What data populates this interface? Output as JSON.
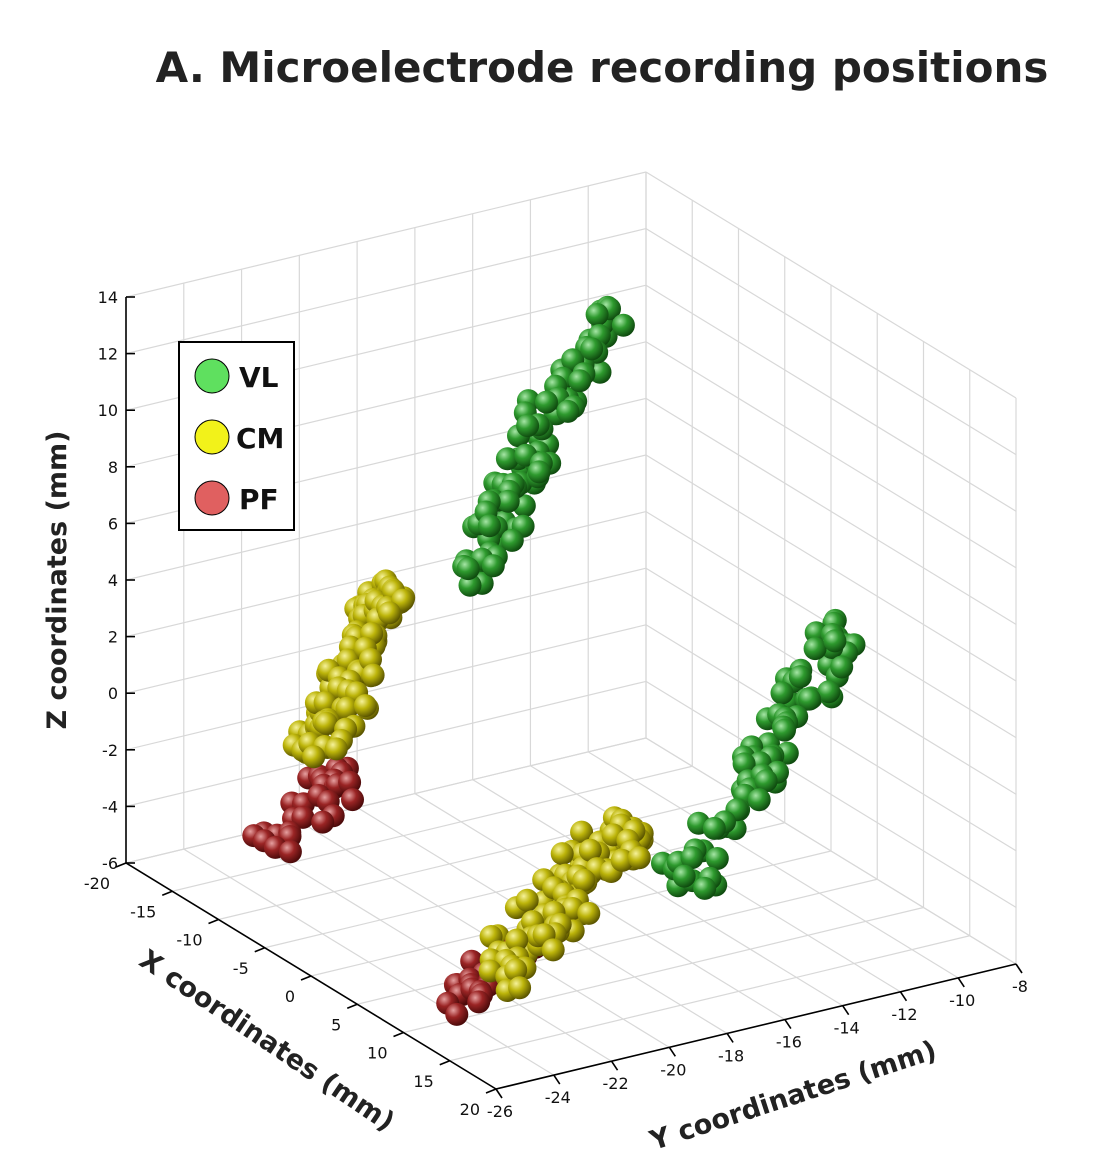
{
  "chart_data": {
    "type": "scatter",
    "title": "A. Microelectrode recording positions",
    "xlabel": "X coordinates (mm)",
    "ylabel": "Y coordinates (mm)",
    "zlabel": "Z coordinates (mm)",
    "xlim": [
      -20,
      20
    ],
    "ylim": [
      -26,
      -8
    ],
    "zlim": [
      -6,
      14
    ],
    "x_ticks": [
      "-20",
      "-15",
      "-10",
      "-5",
      "0",
      "5",
      "10",
      "15",
      "20"
    ],
    "y_ticks": [
      "-26",
      "-24",
      "-22",
      "-20",
      "-18",
      "-16",
      "-14",
      "-12",
      "-10",
      "-8"
    ],
    "z_ticks": [
      "-6",
      "-4",
      "-2",
      "0",
      "2",
      "4",
      "6",
      "8",
      "10",
      "12",
      "14"
    ],
    "grid": true,
    "legend_position": "top-left",
    "series": [
      {
        "name": "VL",
        "color": "#2f9a2f",
        "legend_color": "#5fe05f"
      },
      {
        "name": "CM",
        "color": "#c8c010",
        "legend_color": "#f2f21a"
      },
      {
        "name": "PF",
        "color": "#a02828",
        "legend_color": "#e06060"
      }
    ],
    "clusters": [
      {
        "series": "VL",
        "hemisphere": "left",
        "count": 90,
        "x": [
          -14,
          -9
        ],
        "y": [
          -17,
          -12
        ],
        "z": [
          3,
          12
        ]
      },
      {
        "series": "VL",
        "hemisphere": "right",
        "count": 75,
        "x": [
          8,
          15
        ],
        "y": [
          -17,
          -11
        ],
        "z": [
          -3,
          5
        ]
      },
      {
        "series": "CM",
        "hemisphere": "left",
        "count": 95,
        "x": [
          -17,
          -9
        ],
        "y": [
          -22,
          -19
        ],
        "z": [
          -2,
          3.5
        ]
      },
      {
        "series": "CM",
        "hemisphere": "right",
        "count": 110,
        "x": [
          6,
          14
        ],
        "y": [
          -23,
          -18
        ],
        "z": [
          -5,
          -0.5
        ]
      },
      {
        "series": "PF",
        "hemisphere": "left",
        "count": 30,
        "x": [
          -18,
          -11
        ],
        "y": [
          -23,
          -20
        ],
        "z": [
          -5,
          -3
        ]
      },
      {
        "series": "PF",
        "hemisphere": "right",
        "count": 30,
        "x": [
          5,
          12
        ],
        "y": [
          -24,
          -21
        ],
        "z": [
          -6,
          -4
        ]
      }
    ]
  }
}
